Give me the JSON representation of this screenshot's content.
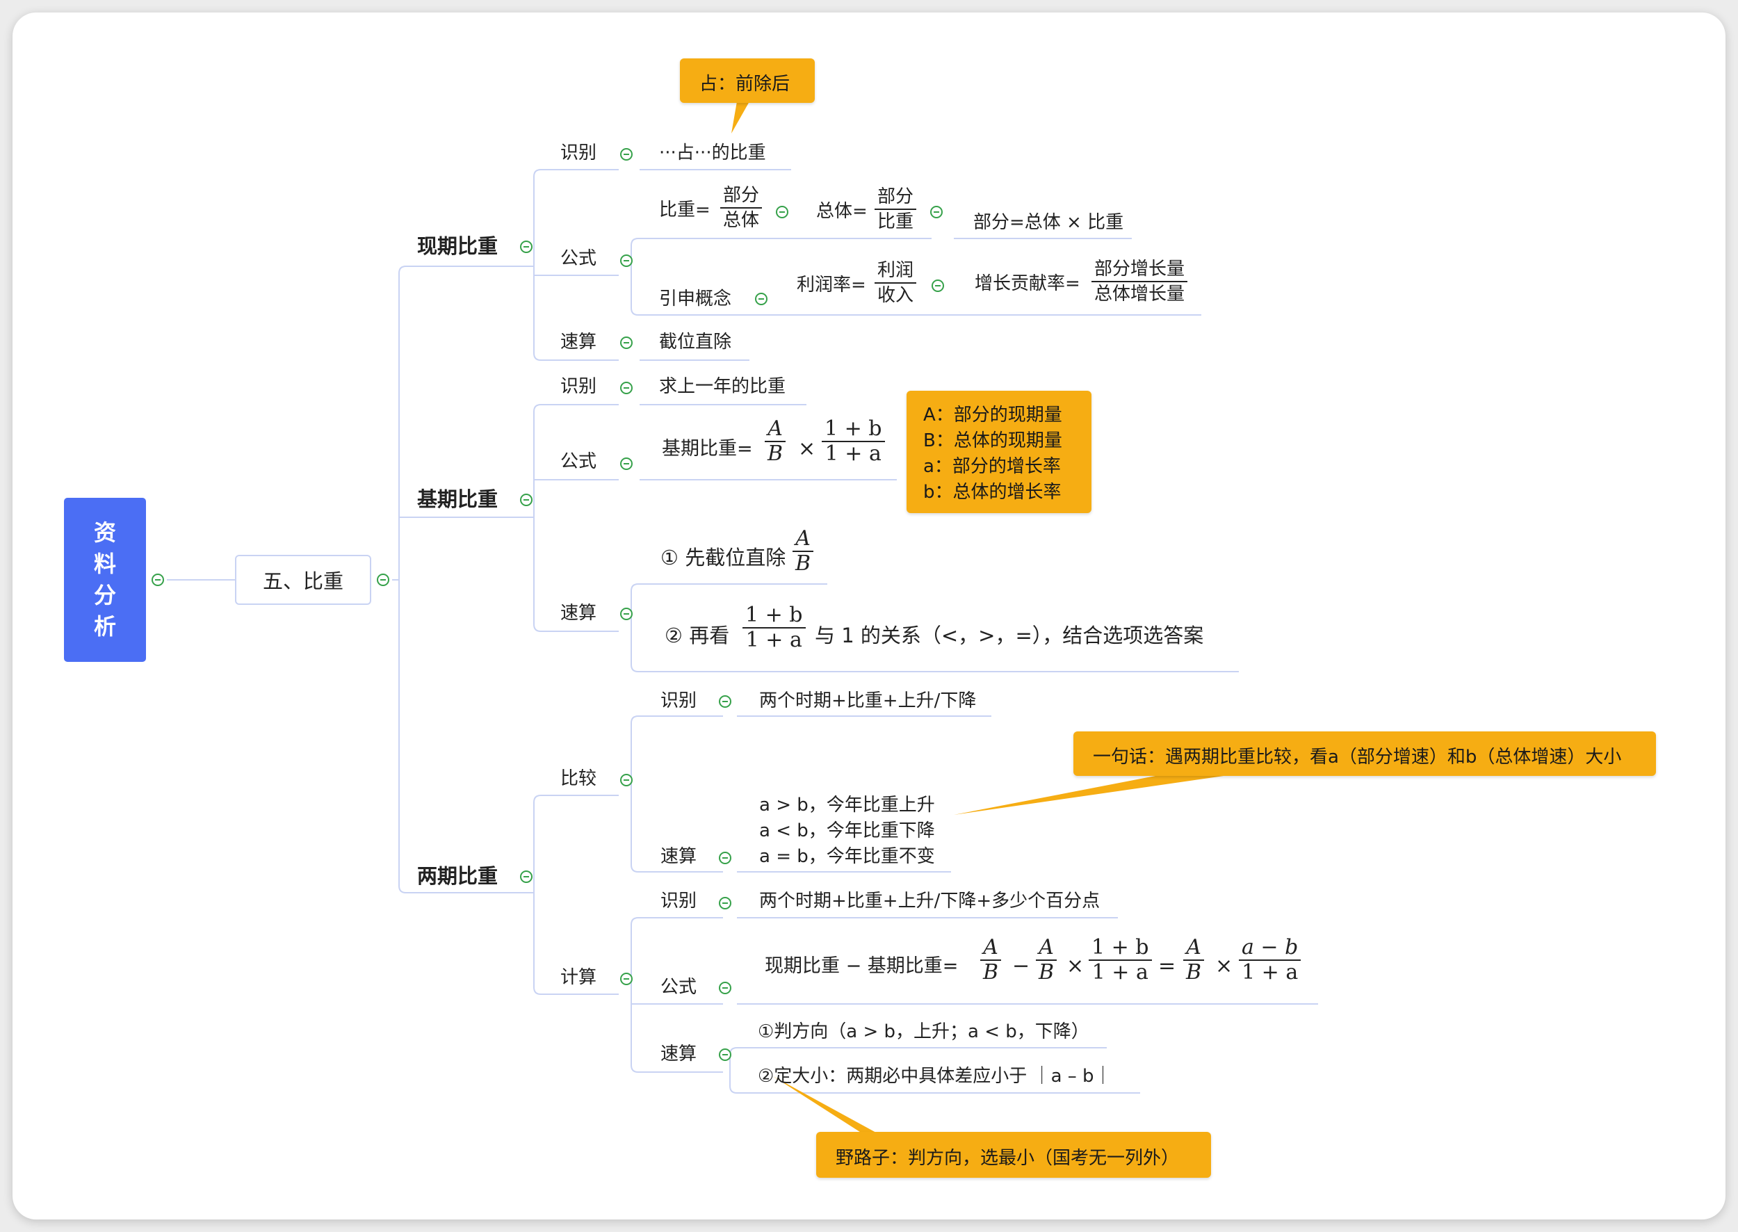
{
  "root": {
    "c1": "资",
    "c2": "料",
    "c3": "分",
    "c4": "析"
  },
  "level1": {
    "label": "五、比重"
  },
  "current": {
    "label": "现期比重",
    "identify": {
      "label": "识别",
      "text": "···占···的比重"
    },
    "tip": "占：前除后",
    "formula": {
      "label": "公式",
      "ratio_prefix": "比重=",
      "ratio_num": "部分",
      "ratio_den": "总体",
      "total_prefix": "总体=",
      "total_num": "部分",
      "total_den": "比重",
      "part_eq": "部分=总体 × 比重",
      "ext_label": "引申概念",
      "profit_prefix": "利润率=",
      "profit_num": "利润",
      "profit_den": "收入",
      "contrib_prefix": "增长贡献率=",
      "contrib_num": "部分增长量",
      "contrib_den": "总体增长量"
    },
    "quick": {
      "label": "速算",
      "text": "截位直除"
    }
  },
  "base": {
    "label": "基期比重",
    "identify": {
      "label": "识别",
      "text": "求上一年的比重"
    },
    "formula": {
      "label": "公式",
      "prefix": "基期比重=",
      "f1_num": "A",
      "f1_den": "B",
      "times": "×",
      "f2_num": "1 + b",
      "f2_den": "1 + a"
    },
    "note": [
      "A：部分的现期量",
      "B：总体的现期量",
      "a：部分的增长率",
      "b：总体的增长率"
    ],
    "quick": {
      "label": "速算",
      "step1": "① 先截位直除",
      "s1_num": "A",
      "s1_den": "B",
      "step2": "② 再看",
      "s2_num": "1 + b",
      "s2_den": "1 + a",
      "step2_tail": "与 1 的关系（<，>，=），结合选项选答案"
    }
  },
  "twoperiod": {
    "label": "两期比重",
    "compare": {
      "label": "比较",
      "identify": {
        "label": "识别",
        "text": "两个时期+比重+上升/下降"
      },
      "quick": {
        "label": "速算",
        "lines": [
          "a > b，今年比重上升",
          "a < b，今年比重下降",
          "a = b，今年比重不变"
        ]
      },
      "tip": "一句话：遇两期比重比较，看a（部分增速）和b（总体增速）大小"
    },
    "calc": {
      "label": "计算",
      "identify": {
        "label": "识别",
        "text": "两个时期+比重+上升/下降+多少个百分点"
      },
      "formula": {
        "label": "公式",
        "prefix": "现期比重 − 基期比重=",
        "a": "A",
        "b": "B",
        "minus": "−",
        "times": "×",
        "eq": "=",
        "onepb": "1 + b",
        "onepa": "1 + a",
        "amb": "a − b"
      },
      "quick": {
        "label": "速算",
        "l1": "①判方向（a > b，上升；a < b，下降）",
        "l2": "②定大小：两期必中具体差应小于 ｜a – b｜"
      },
      "tip": "野路子：判方向，选最小（国考无一列外）"
    }
  }
}
